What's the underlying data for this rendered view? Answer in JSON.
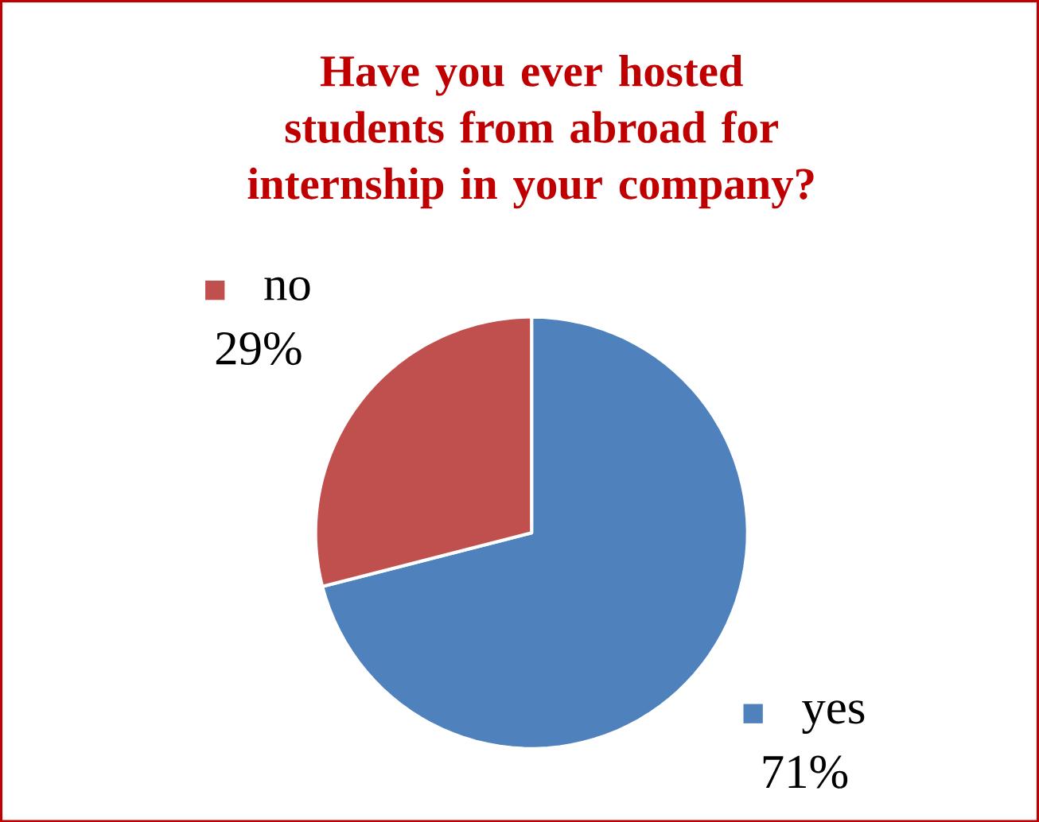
{
  "chart_data": {
    "type": "pie",
    "title": "Have you ever hosted students from abroad for internship in your company?",
    "categories": [
      "yes",
      "no"
    ],
    "values": [
      71,
      29
    ],
    "colors": [
      "#4f81bd",
      "#c0504d"
    ],
    "value_labels": [
      "71%",
      "29%"
    ],
    "legend": "right"
  }
}
